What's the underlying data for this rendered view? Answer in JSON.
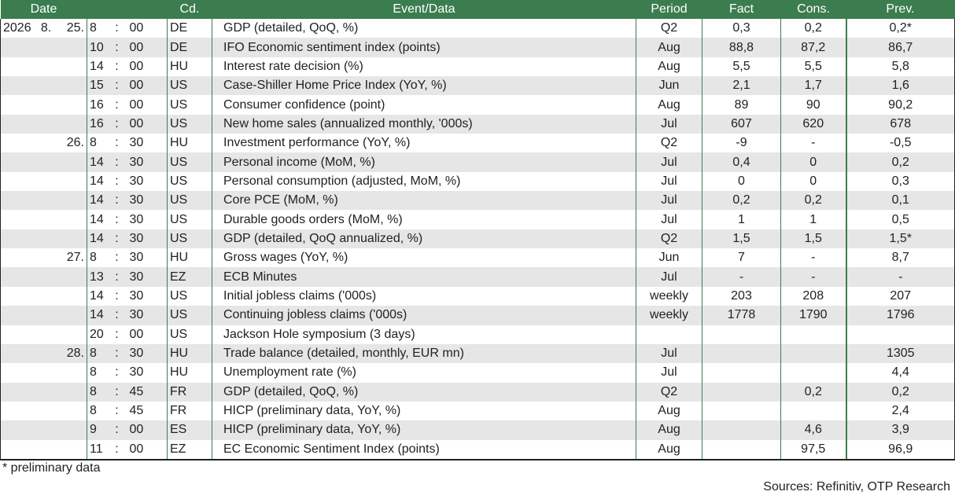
{
  "headers": {
    "date": "Date",
    "cd": "Cd.",
    "event": "Event/Data",
    "period": "Period",
    "fact": "Fact",
    "cons": "Cons.",
    "prev": "Prev."
  },
  "rows": [
    {
      "year": "2026",
      "month": "8.",
      "day": "25.",
      "hour": "8",
      "sep": ":",
      "min": "00",
      "cd": "DE",
      "event": "GDP (detailed, QoQ, %)",
      "period": "Q2",
      "fact": "0,3",
      "cons": "0,2",
      "prev": "0,2*"
    },
    {
      "year": "",
      "month": "",
      "day": "",
      "hour": "10",
      "sep": ":",
      "min": "00",
      "cd": "DE",
      "event": "IFO Economic sentiment index (points)",
      "period": "Aug",
      "fact": "88,8",
      "cons": "87,2",
      "prev": "86,7"
    },
    {
      "year": "",
      "month": "",
      "day": "",
      "hour": "14",
      "sep": ":",
      "min": "00",
      "cd": "HU",
      "event": "Interest rate decision (%)",
      "period": "Aug",
      "fact": "5,5",
      "cons": "5,5",
      "prev": "5,8"
    },
    {
      "year": "",
      "month": "",
      "day": "",
      "hour": "15",
      "sep": ":",
      "min": "00",
      "cd": "US",
      "event": "Case-Shiller Home Price Index (YoY, %)",
      "period": "Jun",
      "fact": "2,1",
      "cons": "1,7",
      "prev": "1,6"
    },
    {
      "year": "",
      "month": "",
      "day": "",
      "hour": "16",
      "sep": ":",
      "min": "00",
      "cd": "US",
      "event": "Consumer confidence (point)",
      "period": "Aug",
      "fact": "89",
      "cons": "90",
      "prev": "90,2"
    },
    {
      "year": "",
      "month": "",
      "day": "",
      "hour": "16",
      "sep": ":",
      "min": "00",
      "cd": "US",
      "event": "New home sales (annualized monthly, '000s)",
      "period": "Jul",
      "fact": "607",
      "cons": "620",
      "prev": "678"
    },
    {
      "year": "",
      "month": "",
      "day": "26.",
      "hour": "8",
      "sep": ":",
      "min": "30",
      "cd": "HU",
      "event": "Investment performance (YoY, %)",
      "period": "Q2",
      "fact": "-9",
      "cons": "-",
      "prev": "-0,5"
    },
    {
      "year": "",
      "month": "",
      "day": "",
      "hour": "14",
      "sep": ":",
      "min": "30",
      "cd": "US",
      "event": "Personal income (MoM, %)",
      "period": "Jul",
      "fact": "0,4",
      "cons": "0",
      "prev": "0,2"
    },
    {
      "year": "",
      "month": "",
      "day": "",
      "hour": "14",
      "sep": ":",
      "min": "30",
      "cd": "US",
      "event": "Personal consumption (adjusted, MoM, %)",
      "period": "Jul",
      "fact": "0",
      "cons": "0",
      "prev": "0,3"
    },
    {
      "year": "",
      "month": "",
      "day": "",
      "hour": "14",
      "sep": ":",
      "min": "30",
      "cd": "US",
      "event": "Core PCE (MoM, %)",
      "period": "Jul",
      "fact": "0,2",
      "cons": "0,2",
      "prev": "0,1"
    },
    {
      "year": "",
      "month": "",
      "day": "",
      "hour": "14",
      "sep": ":",
      "min": "30",
      "cd": "US",
      "event": "Durable goods orders (MoM, %)",
      "period": "Jul",
      "fact": "1",
      "cons": "1",
      "prev": "0,5"
    },
    {
      "year": "",
      "month": "",
      "day": "",
      "hour": "14",
      "sep": ":",
      "min": "30",
      "cd": "US",
      "event": "GDP (detailed, QoQ annualized, %)",
      "period": "Q2",
      "fact": "1,5",
      "cons": "1,5",
      "prev": "1,5*"
    },
    {
      "year": "",
      "month": "",
      "day": "27.",
      "hour": "8",
      "sep": ":",
      "min": "30",
      "cd": "HU",
      "event": "Gross wages (YoY, %)",
      "period": "Jun",
      "fact": "7",
      "cons": "-",
      "prev": "8,7"
    },
    {
      "year": "",
      "month": "",
      "day": "",
      "hour": "13",
      "sep": ":",
      "min": "30",
      "cd": "EZ",
      "event": "ECB Minutes",
      "period": "Jul",
      "fact": "-",
      "cons": "-",
      "prev": "-"
    },
    {
      "year": "",
      "month": "",
      "day": "",
      "hour": "14",
      "sep": ":",
      "min": "30",
      "cd": "US",
      "event": "Initial jobless claims ('000s)",
      "period": "weekly",
      "fact": "203",
      "cons": "208",
      "prev": "207"
    },
    {
      "year": "",
      "month": "",
      "day": "",
      "hour": "14",
      "sep": ":",
      "min": "30",
      "cd": "US",
      "event": "Continuing jobless claims ('000s)",
      "period": "weekly",
      "fact": "1778",
      "cons": "1790",
      "prev": "1796"
    },
    {
      "year": "",
      "month": "",
      "day": "",
      "hour": "20",
      "sep": ":",
      "min": "00",
      "cd": "US",
      "event": "Jackson Hole symposium (3 days)",
      "period": "",
      "fact": "",
      "cons": "",
      "prev": ""
    },
    {
      "year": "",
      "month": "",
      "day": "28.",
      "hour": "8",
      "sep": ":",
      "min": "30",
      "cd": "HU",
      "event": "Trade balance (detailed, monthly, EUR mn)",
      "period": "Jul",
      "fact": "",
      "cons": "",
      "prev": "1305"
    },
    {
      "year": "",
      "month": "",
      "day": "",
      "hour": "8",
      "sep": ":",
      "min": "30",
      "cd": "HU",
      "event": "Unemployment rate (%)",
      "period": "Jul",
      "fact": "",
      "cons": "",
      "prev": "4,4"
    },
    {
      "year": "",
      "month": "",
      "day": "",
      "hour": "8",
      "sep": ":",
      "min": "45",
      "cd": "FR",
      "event": "GDP (detailed, QoQ, %)",
      "period": "Q2",
      "fact": "",
      "cons": "0,2",
      "prev": "0,2"
    },
    {
      "year": "",
      "month": "",
      "day": "",
      "hour": "8",
      "sep": ":",
      "min": "45",
      "cd": "FR",
      "event": "HICP (preliminary data, YoY, %)",
      "period": "Aug",
      "fact": "",
      "cons": "",
      "prev": "2,4"
    },
    {
      "year": "",
      "month": "",
      "day": "",
      "hour": "9",
      "sep": ":",
      "min": "00",
      "cd": "ES",
      "event": "HICP (preliminary data, YoY, %)",
      "period": "Aug",
      "fact": "",
      "cons": "4,6",
      "prev": "3,9"
    },
    {
      "year": "",
      "month": "",
      "day": "",
      "hour": "11",
      "sep": ":",
      "min": "00",
      "cd": "EZ",
      "event": "EC Economic Sentiment Index (points)",
      "period": "Aug",
      "fact": "",
      "cons": "97,5",
      "prev": "96,9"
    }
  ],
  "footnote": "* preliminary data",
  "sources": "Sources: Refinitiv, OTP Research",
  "colors": {
    "header_bg": "#3b7d4f",
    "stripe": "#e6e6e6"
  }
}
